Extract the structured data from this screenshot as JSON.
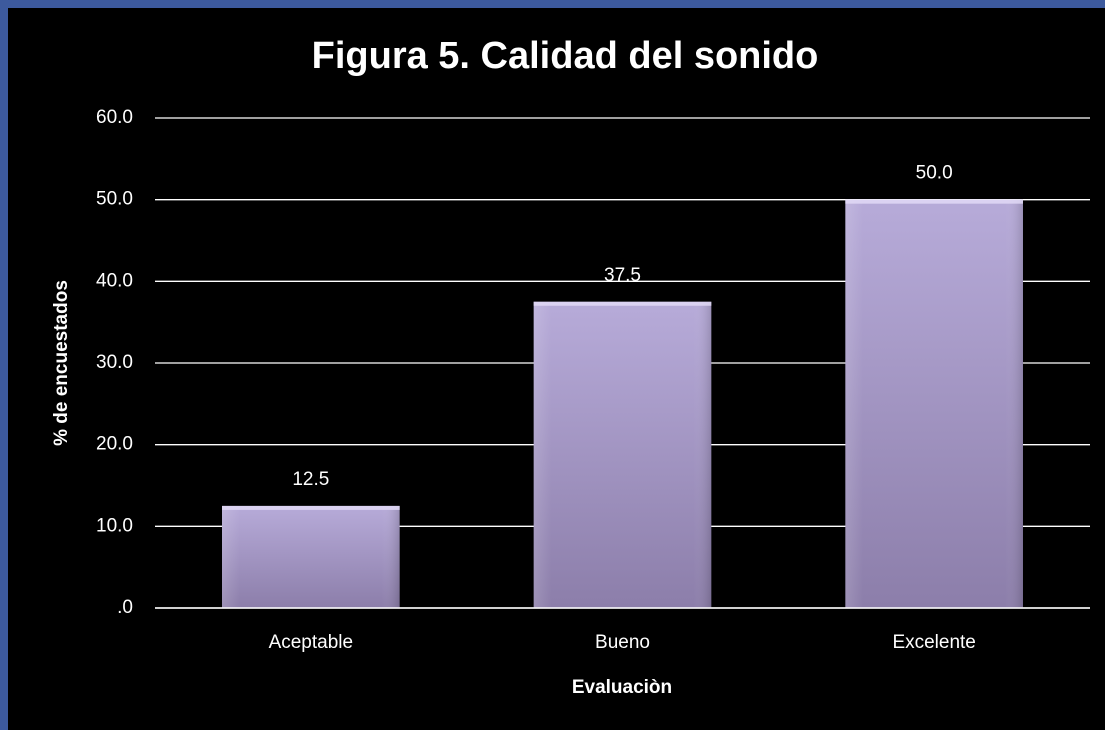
{
  "chart_data": {
    "type": "bar",
    "title": "Figura 5. Calidad del sonido",
    "x_label": "Evaluaciòn",
    "y_label": "% de encuestados",
    "categories": [
      "Aceptable",
      "Bueno",
      "Excelente"
    ],
    "values": [
      12.5,
      37.5,
      50
    ],
    "value_labels": [
      "12.5",
      "37.5",
      "50.0"
    ],
    "color": "#a99bcc",
    "ylim": [
      0,
      60
    ],
    "yticks": [
      {
        "value": 0,
        "label": ".0"
      },
      {
        "value": 10,
        "label": "10.0"
      },
      {
        "value": 20,
        "label": "20.0"
      },
      {
        "value": 30,
        "label": "30.0"
      },
      {
        "value": 40,
        "label": "40.0"
      },
      {
        "value": 50,
        "label": "50.0"
      },
      {
        "value": 60,
        "label": "60.0"
      }
    ],
    "grid": true
  }
}
